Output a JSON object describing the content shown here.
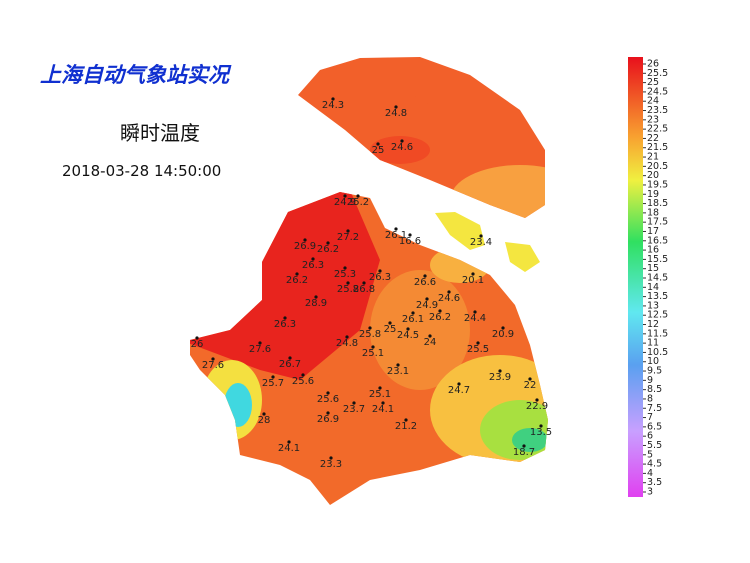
{
  "title": "上海自动气象站实况",
  "subtitle": "瞬时温度",
  "timestamp": "2018-03-28 14:50:00",
  "station_values": [
    24.3,
    24.8,
    25,
    24.6,
    24.9,
    25.2,
    26.1,
    16.6,
    23.4,
    27.2,
    26.9,
    26.2,
    26.3,
    25.3,
    26.3,
    26.2,
    25.8,
    26.8,
    26.6,
    20.1,
    24.6,
    28.9,
    24.9,
    26.2,
    26.1,
    24.4,
    26.3,
    25.8,
    25,
    24.5,
    24,
    20.9,
    24.8,
    25.1,
    25.5,
    26,
    27.6,
    27.6,
    26.7,
    23.1,
    23.9,
    25.7,
    25.6,
    24.7,
    22,
    25.1,
    25.6,
    22.9,
    23.7,
    24.1,
    26.9,
    28,
    21.2,
    13.5,
    24.1,
    18.7,
    23.3
  ],
  "colorbar_ticks": [
    26,
    25.5,
    25,
    24.5,
    24,
    23.5,
    23,
    22.5,
    22,
    21.5,
    21,
    20.5,
    20,
    19.5,
    19,
    18.5,
    18,
    17.5,
    17,
    16.5,
    16,
    15.5,
    15,
    14.5,
    14,
    13.5,
    13,
    12.5,
    12,
    11.5,
    11,
    10.5,
    10,
    9.5,
    9,
    8.5,
    8,
    7.5,
    7,
    6.5,
    6,
    5.5,
    5,
    4.5,
    4,
    3.5,
    3
  ]
}
